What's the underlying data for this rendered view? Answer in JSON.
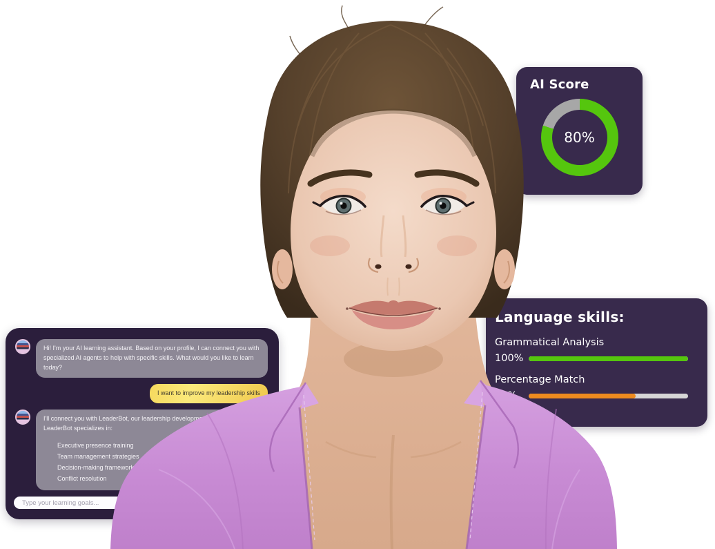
{
  "page": {
    "background": "#ffffff"
  },
  "ai_score_card": {
    "title": "AI Score",
    "score_label": "80%",
    "score_percent": 80,
    "ring_color": "#55c60e",
    "ring_track_color": "#a7a7a7",
    "card_bg": "#382a4c"
  },
  "language_skills_card": {
    "title": "Language skills:",
    "card_bg": "#382a4c",
    "track_color": "#d6d6d6",
    "skills": [
      {
        "name": "Grammatical Analysis",
        "value_label": "100%",
        "percent": 100,
        "bar_visual_percent": 100,
        "color": "#55c60e"
      },
      {
        "name": "Percentage Match",
        "value_label": "53%",
        "percent": 53,
        "bar_visual_percent": 67,
        "color": "#ee8b1f"
      }
    ]
  },
  "chat": {
    "panel_bg": "#2b1e3c",
    "messages": [
      {
        "role": "assistant",
        "text": "Hi! I'm your AI learning assistant. Based on your profile, I can connect you with specialized AI agents to help with specific skills. What would you like to learn today?"
      },
      {
        "role": "user",
        "text": "I want to improve my leadership skills"
      },
      {
        "role": "assistant",
        "text": "I'll connect you with LeaderBot, our leadership development AI agent. LeaderBot specializes in:",
        "list": [
          "Executive presence training",
          "Team management strategies",
          "Decision-making frameworks",
          "Conflict resolution"
        ]
      }
    ],
    "input_placeholder": "Type your learning goals..."
  },
  "avatar": {
    "shirt_color": "#c88bd4",
    "hair_color": "#55402b",
    "skin_color": "#eac7b1"
  }
}
